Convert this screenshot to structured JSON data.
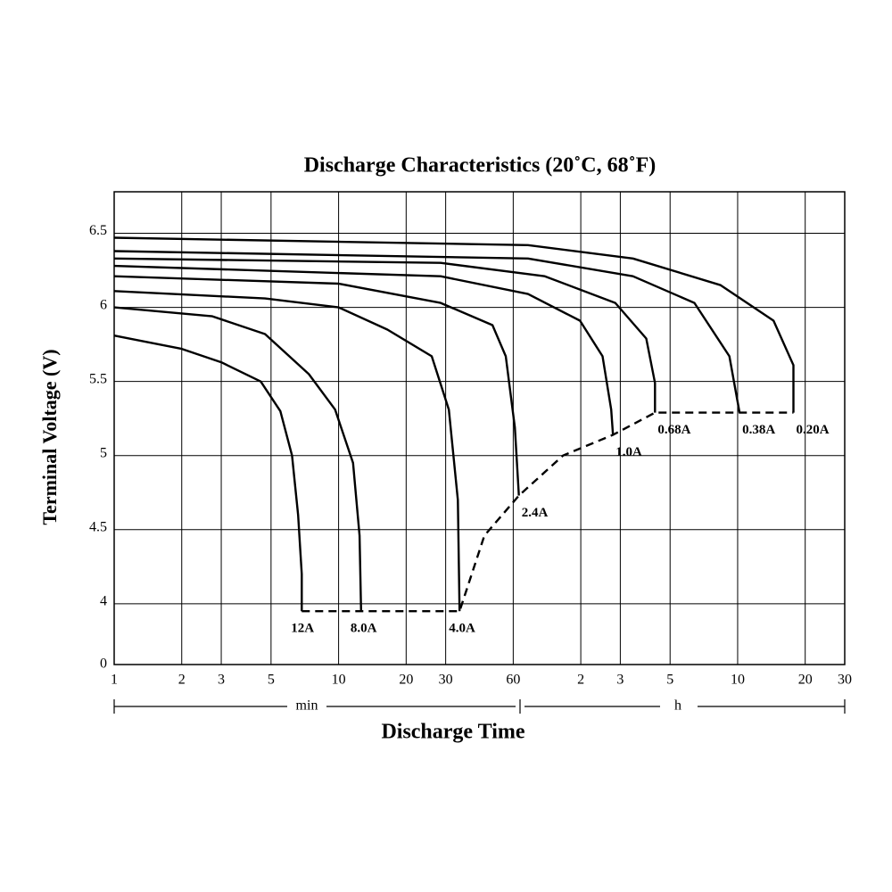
{
  "chart_data": {
    "type": "line",
    "title": "Discharge Characteristics (20˚C, 68˚F)",
    "x_label": "Discharge Time",
    "y_label": "Terminal Voltage (V)",
    "annotations": [
      "min",
      "h"
    ],
    "xscale": "log",
    "xlim": [
      1,
      1800
    ],
    "xticks": [
      1,
      2,
      3,
      5,
      10,
      20,
      30,
      60,
      {
        "value": 120,
        "label": "2"
      },
      {
        "value": 180,
        "label": "3"
      },
      {
        "value": 300,
        "label": "5"
      },
      {
        "value": 600,
        "label": "10"
      },
      {
        "value": 1200,
        "label": "20"
      },
      {
        "value": 1800,
        "label": "30"
      }
    ],
    "ylim": [
      3.59,
      6.78
    ],
    "y_break": true,
    "yticks": [
      0,
      4,
      4.5,
      5,
      5.5,
      6,
      6.5
    ],
    "grid": true,
    "series": [
      {
        "name": "12A",
        "color": "#000000",
        "x": [
          1,
          2,
          3,
          4.5,
          5.5,
          6.2,
          6.6,
          6.85,
          6.85
        ],
        "values": [
          5.81,
          5.72,
          5.63,
          5.5,
          5.3,
          5.0,
          4.6,
          4.2,
          3.95
        ]
      },
      {
        "name": "8.0A",
        "color": "#000000",
        "x": [
          1,
          2.74,
          4.7,
          7.37,
          9.65,
          11.6,
          12.4,
          12.6
        ],
        "values": [
          6.0,
          5.94,
          5.82,
          5.55,
          5.31,
          4.95,
          4.46,
          3.95
        ]
      },
      {
        "name": "4.0A",
        "color": "#000000",
        "x": [
          1,
          4.7,
          10,
          16.5,
          26,
          31,
          34,
          34.6
        ],
        "values": [
          6.11,
          6.06,
          6.0,
          5.85,
          5.67,
          5.31,
          4.7,
          3.95
        ]
      },
      {
        "name": "2.4A",
        "color": "#000000",
        "x": [
          1,
          10,
          28.5,
          48.5,
          55.6,
          61,
          63.6
        ],
        "values": [
          6.21,
          6.16,
          6.03,
          5.88,
          5.67,
          5.19,
          4.73
        ]
      },
      {
        "name": "1.0A",
        "color": "#000000",
        "x": [
          1,
          28.5,
          69.8,
          119,
          150,
          164,
          167
        ],
        "values": [
          6.28,
          6.21,
          6.09,
          5.91,
          5.67,
          5.31,
          5.14
        ]
      },
      {
        "name": "0.68A",
        "color": "#000000",
        "x": [
          1,
          28.5,
          83,
          171,
          235,
          257,
          257
        ],
        "values": [
          6.33,
          6.3,
          6.21,
          6.03,
          5.79,
          5.49,
          5.29
        ]
      },
      {
        "name": "0.38A",
        "color": "#000000",
        "x": [
          1,
          69.8,
          205,
          385,
          551,
          612
        ],
        "values": [
          6.38,
          6.33,
          6.21,
          6.03,
          5.67,
          5.29
        ]
      },
      {
        "name": "0.20A",
        "color": "#000000",
        "x": [
          1,
          69.8,
          205,
          504,
          867,
          1063,
          1063
        ],
        "values": [
          6.47,
          6.42,
          6.33,
          6.15,
          5.91,
          5.61,
          5.29
        ]
      },
      {
        "color": "#000000",
        "dash": true,
        "x": [
          6.85,
          12.6,
          34.6,
          44.6,
          63.6,
          100,
          167,
          257,
          612,
          1063
        ],
        "values": [
          3.95,
          3.95,
          3.95,
          4.46,
          4.73,
          5.0,
          5.14,
          5.29,
          5.29,
          5.29
        ]
      }
    ]
  }
}
